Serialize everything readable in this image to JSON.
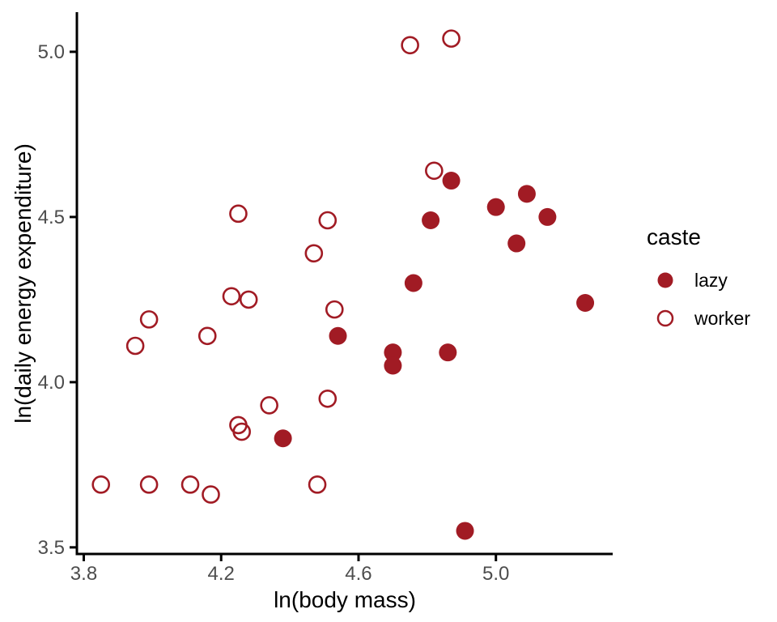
{
  "chart_data": {
    "type": "scatter",
    "title": "",
    "xlabel": "ln(body mass)",
    "ylabel": "ln(daily energy expenditure)",
    "xlim": [
      3.78,
      5.34
    ],
    "ylim": [
      3.48,
      5.12
    ],
    "xticks": [
      3.8,
      4.2,
      4.6,
      5.0
    ],
    "yticks": [
      3.5,
      4.0,
      4.5,
      5.0
    ],
    "grid": false,
    "background": "#FFFFFF",
    "point_color": "#A11B24",
    "axis_color": "#000000",
    "tick_label_color": "#4D4D4D",
    "legend": {
      "title": "caste",
      "position": "right",
      "items": [
        {
          "label": "lazy",
          "marker": "filled-circle"
        },
        {
          "label": "worker",
          "marker": "open-circle"
        }
      ]
    },
    "series": [
      {
        "name": "worker",
        "marker": "open-circle",
        "points": [
          [
            3.85,
            3.69
          ],
          [
            3.95,
            4.11
          ],
          [
            3.99,
            4.19
          ],
          [
            3.99,
            3.69
          ],
          [
            4.11,
            3.69
          ],
          [
            4.16,
            4.14
          ],
          [
            4.17,
            3.66
          ],
          [
            4.23,
            4.26
          ],
          [
            4.25,
            4.51
          ],
          [
            4.25,
            3.87
          ],
          [
            4.26,
            3.85
          ],
          [
            4.28,
            4.25
          ],
          [
            4.34,
            3.93
          ],
          [
            4.47,
            4.39
          ],
          [
            4.48,
            3.69
          ],
          [
            4.51,
            4.49
          ],
          [
            4.51,
            3.95
          ],
          [
            4.53,
            4.22
          ],
          [
            4.75,
            5.02
          ],
          [
            4.82,
            4.64
          ],
          [
            4.87,
            5.04
          ]
        ]
      },
      {
        "name": "lazy",
        "marker": "filled-circle",
        "points": [
          [
            4.38,
            3.83
          ],
          [
            4.54,
            4.14
          ],
          [
            4.7,
            4.09
          ],
          [
            4.7,
            4.05
          ],
          [
            4.76,
            4.3
          ],
          [
            4.81,
            4.49
          ],
          [
            4.86,
            4.09
          ],
          [
            4.87,
            4.61
          ],
          [
            4.91,
            3.55
          ],
          [
            5.0,
            4.53
          ],
          [
            5.06,
            4.42
          ],
          [
            5.09,
            4.57
          ],
          [
            5.15,
            4.5
          ],
          [
            5.26,
            4.24
          ]
        ]
      }
    ]
  }
}
